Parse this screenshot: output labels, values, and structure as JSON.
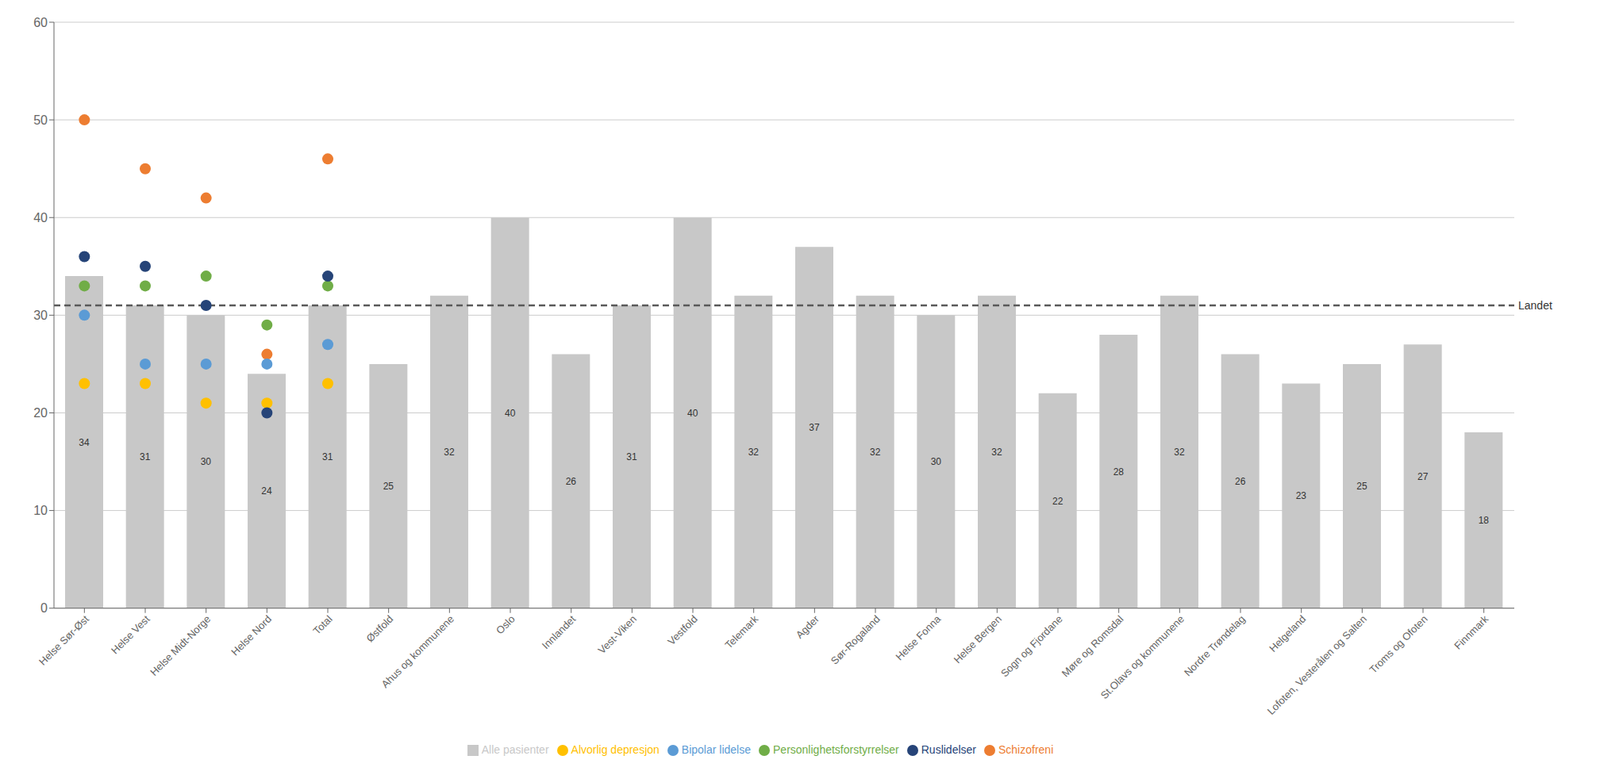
{
  "chart_data": {
    "type": "bar",
    "categories": [
      "Helse Sør-Øst",
      "Helse Vest",
      "Helse Midt-Norge",
      "Helse Nord",
      "Total",
      "Østfold",
      "Ahus og kommunene",
      "Oslo",
      "Innlandet",
      "Vest-Viken",
      "Vestfold",
      "Telemark",
      "Agder",
      "Sør-Rogaland",
      "Helse Fonna",
      "Helse Bergen",
      "Sogn og Fjordane",
      "Møre og Romsdal",
      "St.Olavs og kommunene",
      "Nordre Trøndelag",
      "Helgeland",
      "Lofoten, Vesterålen og Salten",
      "Troms og Ofoten",
      "Finnmark"
    ],
    "series": [
      {
        "name": "Alle pasienter",
        "type": "bar",
        "color": "#c8c8c8",
        "data_labels": true,
        "values": [
          34,
          31,
          30,
          24,
          31,
          25,
          32,
          40,
          26,
          31,
          40,
          32,
          37,
          32,
          30,
          32,
          22,
          28,
          32,
          26,
          23,
          25,
          27,
          18
        ]
      },
      {
        "name": "Schizofreni",
        "type": "scatter",
        "marker": "circle",
        "color": "#ed7d31",
        "values": [
          50,
          45,
          42,
          26,
          46,
          null,
          null,
          null,
          null,
          null,
          null,
          null,
          null,
          null,
          null,
          null,
          null,
          null,
          null,
          null,
          null,
          null,
          null,
          null
        ]
      },
      {
        "name": "Bipolar lidelse",
        "type": "scatter",
        "marker": "circle",
        "color": "#5b9bd5",
        "values": [
          30,
          25,
          25,
          25,
          27,
          null,
          null,
          null,
          null,
          null,
          null,
          null,
          null,
          null,
          null,
          null,
          null,
          null,
          null,
          null,
          null,
          null,
          null,
          null
        ]
      },
      {
        "name": "Alvorlig depresjon",
        "type": "scatter",
        "marker": "circle",
        "color": "#ffc000",
        "values": [
          23,
          23,
          21,
          21,
          23,
          null,
          null,
          null,
          null,
          null,
          null,
          null,
          null,
          null,
          null,
          null,
          null,
          null,
          null,
          null,
          null,
          null,
          null,
          null
        ]
      },
      {
        "name": "Personlighetsforstyrrelser",
        "type": "scatter",
        "marker": "circle",
        "color": "#70ad47",
        "values": [
          33,
          33,
          34,
          29,
          33,
          null,
          null,
          null,
          null,
          null,
          null,
          null,
          null,
          null,
          null,
          null,
          null,
          null,
          null,
          null,
          null,
          null,
          null,
          null
        ]
      },
      {
        "name": "Ruslidelser",
        "type": "scatter",
        "marker": "circle",
        "color": "#264478",
        "values": [
          36,
          35,
          31,
          20,
          34,
          null,
          null,
          null,
          null,
          null,
          null,
          null,
          null,
          null,
          null,
          null,
          null,
          null,
          null,
          null,
          null,
          null,
          null,
          null
        ]
      }
    ],
    "annotations": [
      {
        "type": "line",
        "text": "Landet",
        "value": 31,
        "color": "#595959",
        "line_style": "dashed"
      }
    ],
    "ylim": [
      0,
      60
    ],
    "yticks": [
      0,
      10,
      20,
      30,
      40,
      50,
      60
    ],
    "grid": "y",
    "legend": "bottom"
  }
}
